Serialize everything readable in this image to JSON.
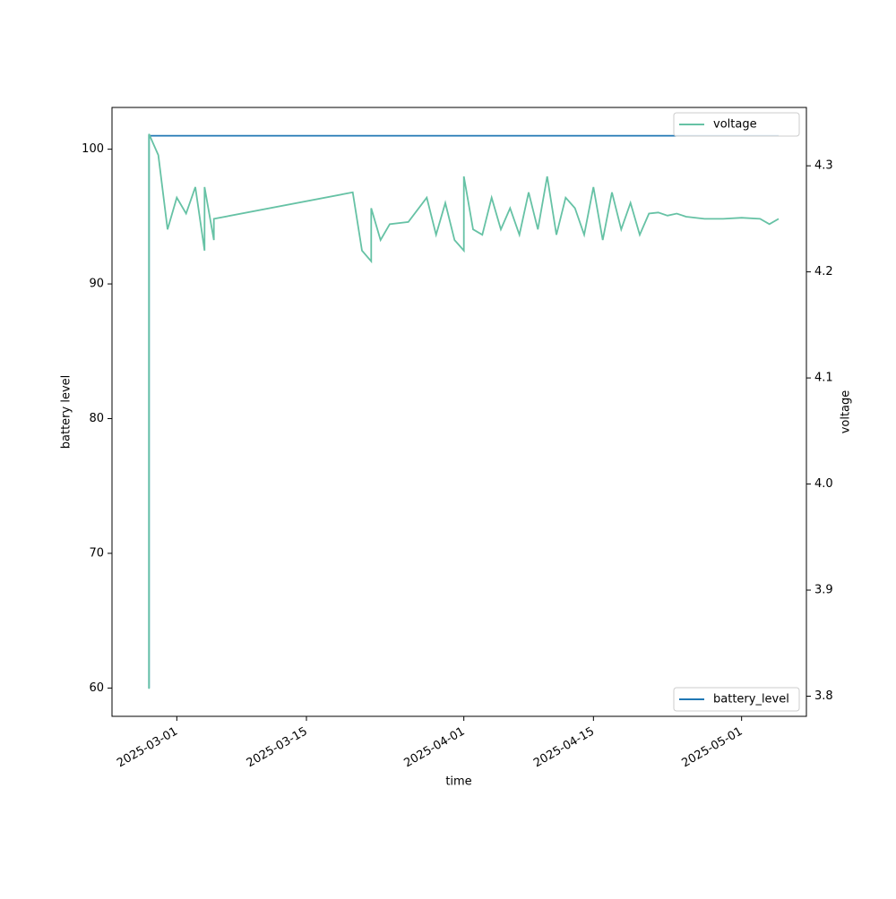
{
  "chart_data": {
    "type": "line",
    "x_label": "time",
    "y_label": "battery level",
    "y2_label": "voltage",
    "xlim": [
      "2025-02-22",
      "2025-05-08"
    ],
    "xticks": [
      "2025-03-01",
      "2025-03-15",
      "2025-04-01",
      "2025-04-15",
      "2025-05-01"
    ],
    "ylim": [
      57.9,
      103.1
    ],
    "yticks": [
      60,
      70,
      80,
      90,
      100
    ],
    "y2lim": [
      3.781,
      4.355
    ],
    "y2ticks": [
      3.8,
      3.9,
      {
        "value": 4,
        "label": "4.0"
      },
      4.1,
      4.2,
      4.3
    ],
    "legend_y": "lower right",
    "legend_y2": "upper right",
    "series": [
      {
        "name": "battery_level",
        "color": "#1f77b4",
        "x": [
          "2025-02-26",
          "2025-02-26",
          "2025-02-27",
          "2025-05-05"
        ],
        "values": [
          60,
          101,
          101,
          101
        ]
      },
      {
        "name": "voltage",
        "color": "#66c2a5",
        "axis": "y2",
        "x": [
          "2025-02-26",
          "2025-02-26",
          "2025-02-27",
          "2025-02-28",
          "2025-03-01",
          "2025-03-02",
          "2025-03-03",
          "2025-03-04",
          "2025-03-04",
          "2025-03-05",
          "2025-03-05",
          "2025-03-20",
          "2025-03-21",
          "2025-03-22",
          "2025-03-22",
          "2025-03-23",
          "2025-03-24",
          "2025-03-26",
          "2025-03-28",
          "2025-03-29",
          "2025-03-30",
          "2025-03-31",
          "2025-04-01",
          "2025-04-01",
          "2025-04-02",
          "2025-04-03",
          "2025-04-04",
          "2025-04-05",
          "2025-04-06",
          "2025-04-07",
          "2025-04-08",
          "2025-04-09",
          "2025-04-10",
          "2025-04-11",
          "2025-04-12",
          "2025-04-13",
          "2025-04-14",
          "2025-04-15",
          "2025-04-16",
          "2025-04-17",
          "2025-04-18",
          "2025-04-19",
          "2025-04-20",
          "2025-04-21",
          "2025-04-22",
          "2025-04-23",
          "2025-04-24",
          "2025-04-25",
          "2025-04-27",
          "2025-04-29",
          "2025-05-01",
          "2025-05-03",
          "2025-05-04",
          "2025-05-05"
        ],
        "values": [
          3.807,
          4.33,
          4.31,
          4.24,
          4.27,
          4.255,
          4.28,
          4.22,
          4.28,
          4.23,
          4.25,
          4.275,
          4.22,
          4.21,
          4.26,
          4.23,
          4.245,
          4.247,
          4.27,
          4.235,
          4.265,
          4.23,
          4.22,
          4.29,
          4.24,
          4.235,
          4.27,
          4.24,
          4.26,
          4.235,
          4.275,
          4.24,
          4.29,
          4.235,
          4.27,
          4.26,
          4.235,
          4.28,
          4.23,
          4.275,
          4.24,
          4.265,
          4.235,
          4.255,
          4.256,
          4.253,
          4.255,
          4.252,
          4.25,
          4.25,
          4.251,
          4.25,
          4.245,
          4.25
        ]
      }
    ]
  }
}
